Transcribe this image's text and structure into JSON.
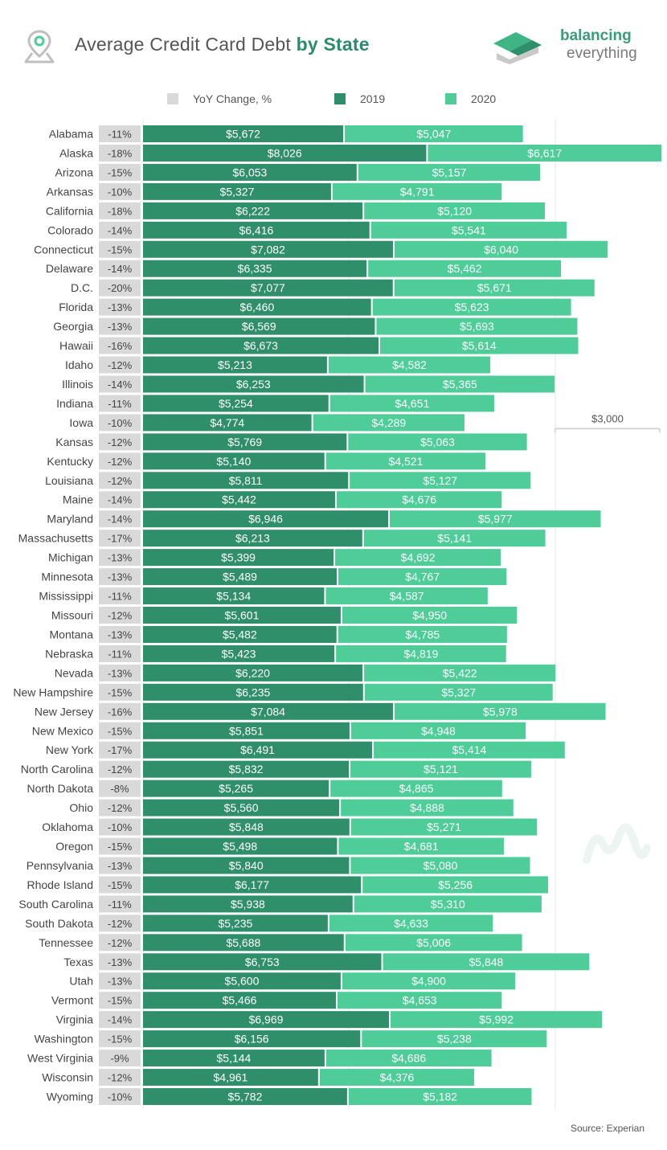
{
  "header": {
    "title_main": "Average Credit Card Debt ",
    "title_bold": "by State",
    "logo_line1": "balancing",
    "logo_line2": "everything"
  },
  "icons": {
    "title": "location-pin-icon",
    "logo": "balancing-everything-logo"
  },
  "colors": {
    "yoy": "#d9d9d9",
    "y2019": "#2f8f6a",
    "y2020": "#4fcd99",
    "accent": "#2e8b68"
  },
  "legend": {
    "yoy": "YoY Change, %",
    "y2019": "2019",
    "y2020": "2020"
  },
  "source": "Source: Experian",
  "chart_data": {
    "type": "bar",
    "orientation": "horizontal",
    "stacked": true,
    "reference_label": "$3,000",
    "categories": [
      "Alabama",
      "Alaska",
      "Arizona",
      "Arkansas",
      "California",
      "Colorado",
      "Connecticut",
      "Delaware",
      "D.C.",
      "Florida",
      "Georgia",
      "Hawaii",
      "Idaho",
      "Illinois",
      "Indiana",
      "Iowa",
      "Kansas",
      "Kentucky",
      "Louisiana",
      "Maine",
      "Maryland",
      "Massachusetts",
      "Michigan",
      "Minnesota",
      "Mississippi",
      "Missouri",
      "Montana",
      "Nebraska",
      "Nevada",
      "New Hampshire",
      "New Jersey",
      "New Mexico",
      "New York",
      "North Carolina",
      "North Dakota",
      "Ohio",
      "Oklahoma",
      "Oregon",
      "Pennsylvania",
      "Rhode Island",
      "South Carolina",
      "South Dakota",
      "Tennessee",
      "Texas",
      "Utah",
      "Vermont",
      "Virginia",
      "Washington",
      "West Virginia",
      "Wisconsin",
      "Wyoming"
    ],
    "series": [
      {
        "name": "YoY Change, %",
        "values": [
          "-11%",
          "-18%",
          "-15%",
          "-10%",
          "-18%",
          "-14%",
          "-15%",
          "-14%",
          "-20%",
          "-13%",
          "-13%",
          "-16%",
          "-12%",
          "-14%",
          "-11%",
          "-10%",
          "-12%",
          "-12%",
          "-12%",
          "-14%",
          "-14%",
          "-17%",
          "-13%",
          "-13%",
          "-11%",
          "-12%",
          "-13%",
          "-11%",
          "-13%",
          "-15%",
          "-16%",
          "-15%",
          "-17%",
          "-12%",
          "-8%",
          "-12%",
          "-10%",
          "-15%",
          "-13%",
          "-15%",
          "-11%",
          "-12%",
          "-12%",
          "-13%",
          "-13%",
          "-15%",
          "-14%",
          "-15%",
          "-9%",
          "-12%",
          "-10%"
        ]
      },
      {
        "name": "2019",
        "values": [
          5672,
          8026,
          6053,
          5327,
          6222,
          6416,
          7082,
          6335,
          7077,
          6460,
          6569,
          6673,
          5213,
          6253,
          5254,
          4774,
          5769,
          5140,
          5811,
          5442,
          6946,
          6213,
          5399,
          5489,
          5134,
          5601,
          5482,
          5423,
          6220,
          6235,
          7084,
          5851,
          6491,
          5832,
          5265,
          5560,
          5848,
          5498,
          5840,
          6177,
          5938,
          5235,
          5688,
          6753,
          5600,
          5466,
          6969,
          6156,
          5144,
          4961,
          5782
        ],
        "labels": [
          "$5,672",
          "$8,026",
          "$6,053",
          "$5,327",
          "$6,222",
          "$6,416",
          "$7,082",
          "$6,335",
          "$7,077",
          "$6,460",
          "$6,569",
          "$6,673",
          "$5,213",
          "$6,253",
          "$5,254",
          "$4,774",
          "$5,769",
          "$5,140",
          "$5,811",
          "$5,442",
          "$6,946",
          "$6,213",
          "$5,399",
          "$5,489",
          "$5,134",
          "$5,601",
          "$5,482",
          "$5,423",
          "$6,220",
          "$6,235",
          "$7,084",
          "$5,851",
          "$6,491",
          "$5,832",
          "$5,265",
          "$5,560",
          "$5,848",
          "$5,498",
          "$5,840",
          "$6,177",
          "$5,938",
          "$5,235",
          "$5,688",
          "$6,753",
          "$5,600",
          "$5,466",
          "$6,969",
          "$6,156",
          "$5,144",
          "$4,961",
          "$5,782"
        ]
      },
      {
        "name": "2020",
        "values": [
          5047,
          6617,
          5157,
          4791,
          5120,
          5541,
          6040,
          5462,
          5671,
          5623,
          5693,
          5614,
          4582,
          5365,
          4651,
          4289,
          5063,
          4521,
          5127,
          4676,
          5977,
          5141,
          4692,
          4767,
          4587,
          4950,
          4785,
          4819,
          5422,
          5327,
          5978,
          4948,
          5414,
          5121,
          4865,
          4888,
          5271,
          4681,
          5080,
          5256,
          5310,
          4633,
          5006,
          5848,
          4900,
          4653,
          5992,
          5238,
          4686,
          4376,
          5182
        ],
        "labels": [
          "$5,047",
          "$6,617",
          "$5,157",
          "$4,791",
          "$5,120",
          "$5,541",
          "$6,040",
          "$5,462",
          "$5,671",
          "$5,623",
          "$5,693",
          "$5,614",
          "$4,582",
          "$5,365",
          "$4,651",
          "$4,289",
          "$5,063",
          "$4,521",
          "$5,127",
          "$4,676",
          "$5,977",
          "$5,141",
          "$4,692",
          "$4,767",
          "$4,587",
          "$4,950",
          "$4,785",
          "$4,819",
          "$5,422",
          "$5,327",
          "$5,978",
          "$4,948",
          "$5,414",
          "$5,121",
          "$4,865",
          "$4,888",
          "$5,271",
          "$4,681",
          "$5,080",
          "$5,256",
          "$5,310",
          "$4,633",
          "$5,006",
          "$5,848",
          "$4,900",
          "$4,653",
          "$5,992",
          "$5,238",
          "$4,686",
          "$4,376",
          "$5,182"
        ]
      }
    ]
  }
}
